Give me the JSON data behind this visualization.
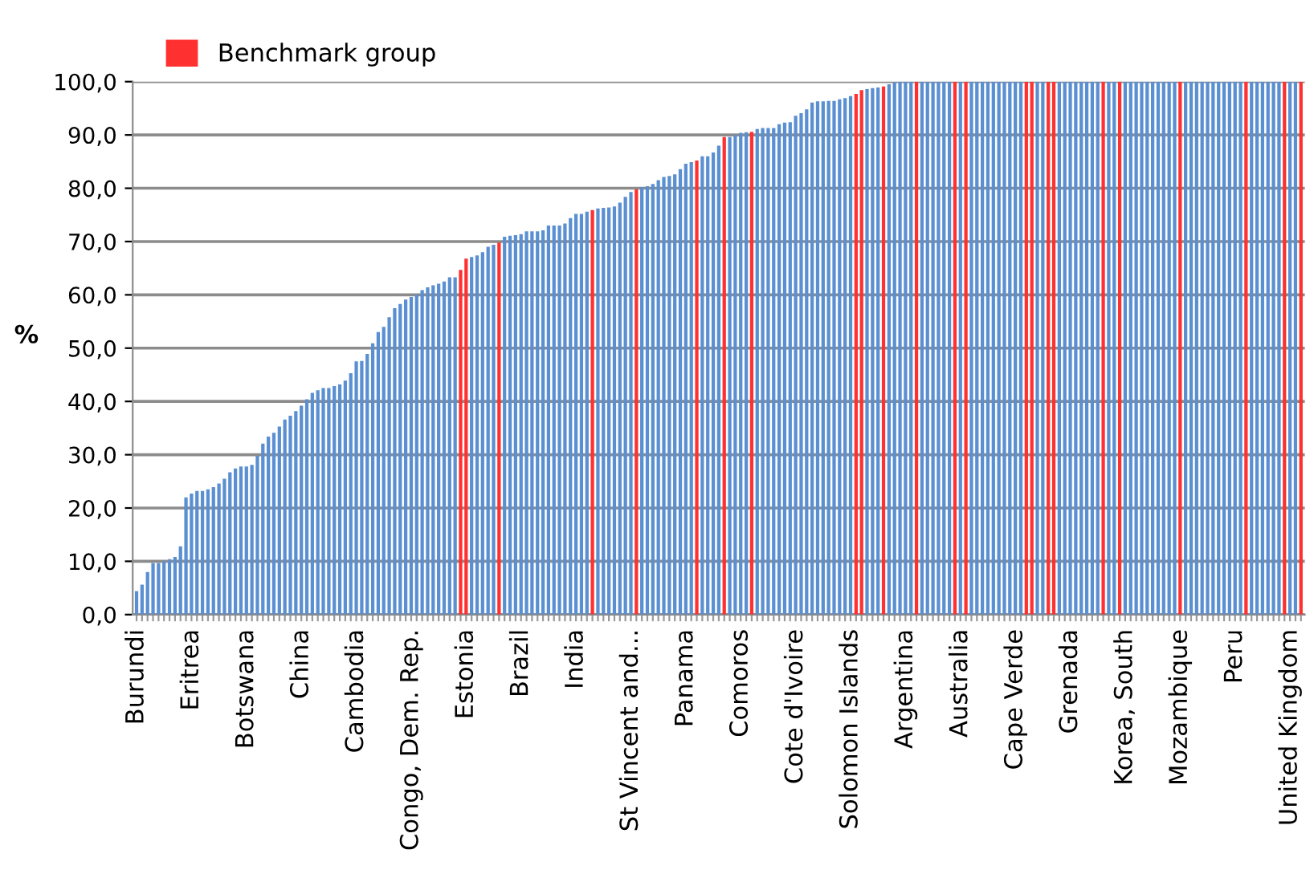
{
  "chart_data": {
    "type": "bar",
    "categories": [
      "Burundi",
      null,
      null,
      null,
      null,
      null,
      null,
      null,
      null,
      null,
      "Eritrea",
      null,
      null,
      null,
      null,
      null,
      null,
      null,
      null,
      null,
      "Botswana",
      null,
      null,
      null,
      null,
      null,
      null,
      null,
      null,
      null,
      "China",
      null,
      null,
      null,
      null,
      null,
      null,
      null,
      null,
      null,
      "Cambodia",
      null,
      null,
      null,
      null,
      null,
      null,
      null,
      null,
      null,
      "Congo, Dem. Rep.",
      null,
      null,
      null,
      null,
      null,
      null,
      null,
      null,
      null,
      "Estonia",
      null,
      null,
      null,
      null,
      null,
      null,
      null,
      null,
      null,
      "Brazil",
      null,
      null,
      null,
      null,
      null,
      null,
      null,
      null,
      null,
      "India",
      null,
      null,
      null,
      null,
      null,
      null,
      null,
      null,
      null,
      "St Vincent and...",
      null,
      null,
      null,
      null,
      null,
      null,
      null,
      null,
      null,
      "Panama",
      null,
      null,
      null,
      null,
      null,
      null,
      null,
      null,
      null,
      "Comoros",
      null,
      null,
      null,
      null,
      null,
      null,
      null,
      null,
      null,
      "Cote d'Ivoire",
      null,
      null,
      null,
      null,
      null,
      null,
      null,
      null,
      null,
      "Solomon Islands",
      null,
      null,
      null,
      null,
      null,
      null,
      null,
      null,
      null,
      "Argentina",
      null,
      null,
      null,
      null,
      null,
      null,
      null,
      null,
      null,
      "Australia",
      null,
      null,
      null,
      null,
      null,
      null,
      null,
      null,
      null,
      "Cape Verde",
      null,
      null,
      null,
      null,
      null,
      null,
      null,
      null,
      null,
      "Grenada",
      null,
      null,
      null,
      null,
      null,
      null,
      null,
      null,
      null,
      "Korea, South",
      null,
      null,
      null,
      null,
      null,
      null,
      null,
      null,
      null,
      "Mozambique",
      null,
      null,
      null,
      null,
      null,
      null,
      null,
      null,
      null,
      "Peru",
      null,
      null,
      null,
      null,
      null,
      null,
      null,
      null,
      null,
      "United Kingdom",
      null,
      null
    ],
    "series": [
      {
        "color": "#5a8fd1",
        "values": [
          4.4,
          5.6,
          8.0,
          9.7,
          9.7,
          10.0,
          10.4,
          10.8,
          12.8,
          22.0,
          22.7,
          23.2,
          23.2,
          23.5,
          23.9,
          24.6,
          25.5,
          26.7,
          27.4,
          27.8,
          27.8,
          28.1,
          29.8,
          32.1,
          33.4,
          34.1,
          35.3,
          36.6,
          37.3,
          38.2,
          39.2,
          40.4,
          41.6,
          42.1,
          42.5,
          42.5,
          42.9,
          43.2,
          43.9,
          45.3,
          47.5,
          47.6,
          48.9,
          50.9,
          53.0,
          54.0,
          55.8,
          57.5,
          58.3,
          59.1,
          59.6,
          60.0,
          60.9,
          61.4,
          61.8,
          62.1,
          62.5,
          63.3,
          63.3,
          null,
          null,
          67.1,
          67.4,
          68.0,
          69.0,
          69.4,
          null,
          70.9,
          71.1,
          71.2,
          71.4,
          71.9,
          71.9,
          71.9,
          72.1,
          73.0,
          73.0,
          73.0,
          73.4,
          74.4,
          75.2,
          75.2,
          75.6,
          null,
          76.2,
          76.3,
          76.4,
          76.6,
          77.3,
          78.4,
          79.3,
          null,
          80.2,
          80.4,
          80.8,
          81.5,
          82.1,
          82.3,
          82.6,
          83.6,
          84.6,
          84.9,
          null,
          86.0,
          86.0,
          86.7,
          88.0,
          null,
          89.6,
          90.0,
          90.4,
          90.5,
          null,
          91.1,
          91.3,
          91.3,
          91.3,
          92.0,
          92.3,
          92.4,
          93.6,
          94.1,
          94.8,
          96.1,
          96.3,
          96.3,
          96.4,
          96.4,
          96.7,
          96.9,
          97.3,
          null,
          null,
          98.6,
          98.8,
          98.9,
          null,
          99.5,
          99.9,
          100,
          100,
          100,
          null,
          100,
          100,
          100,
          100,
          100,
          100,
          null,
          100,
          null,
          100,
          100,
          100,
          100,
          100,
          100,
          100,
          100,
          100,
          100,
          null,
          null,
          100,
          100,
          null,
          null,
          100,
          100,
          100,
          100,
          100,
          100,
          100,
          100,
          null,
          100,
          100,
          null,
          100,
          100,
          100,
          100,
          100,
          100,
          100,
          100,
          100,
          100,
          null,
          100,
          100,
          100,
          100,
          100,
          100,
          100,
          100,
          100,
          100,
          100,
          null,
          100,
          100,
          100,
          100,
          100,
          100,
          null,
          100,
          100,
          null
        ]
      },
      {
        "name": "Benchmark group",
        "color": "#ff3030",
        "values": [
          null,
          null,
          null,
          null,
          null,
          null,
          null,
          null,
          null,
          null,
          null,
          null,
          null,
          null,
          null,
          null,
          null,
          null,
          null,
          null,
          null,
          null,
          null,
          null,
          null,
          null,
          null,
          null,
          null,
          null,
          null,
          null,
          null,
          null,
          null,
          null,
          null,
          null,
          null,
          null,
          null,
          null,
          null,
          null,
          null,
          null,
          null,
          null,
          null,
          null,
          null,
          null,
          null,
          null,
          null,
          null,
          null,
          null,
          null,
          64.7,
          66.8,
          null,
          null,
          null,
          null,
          null,
          69.8,
          null,
          null,
          null,
          null,
          null,
          null,
          null,
          null,
          null,
          null,
          null,
          null,
          null,
          null,
          null,
          null,
          75.9,
          null,
          null,
          null,
          null,
          null,
          null,
          null,
          79.8,
          null,
          null,
          null,
          null,
          null,
          null,
          null,
          null,
          null,
          null,
          85.2,
          null,
          null,
          null,
          null,
          89.6,
          null,
          null,
          null,
          null,
          90.6,
          null,
          null,
          null,
          null,
          null,
          null,
          null,
          null,
          null,
          null,
          null,
          null,
          null,
          null,
          null,
          null,
          null,
          null,
          97.7,
          98.4,
          null,
          null,
          null,
          99.1,
          null,
          null,
          null,
          null,
          null,
          100,
          null,
          null,
          null,
          null,
          null,
          null,
          100,
          null,
          100,
          null,
          null,
          null,
          null,
          null,
          null,
          null,
          null,
          null,
          null,
          100,
          100,
          null,
          null,
          100,
          100,
          null,
          null,
          null,
          null,
          null,
          null,
          null,
          null,
          100,
          null,
          null,
          100,
          null,
          null,
          null,
          null,
          null,
          null,
          null,
          null,
          null,
          null,
          100,
          null,
          null,
          null,
          null,
          null,
          null,
          null,
          null,
          null,
          null,
          null,
          100,
          null,
          null,
          null,
          null,
          null,
          null,
          100,
          null,
          null,
          100
        ]
      }
    ],
    "ylabel": "%",
    "ylim": [
      0,
      100
    ],
    "yticks": [
      {
        "value": 0,
        "label": "0,0"
      },
      {
        "value": 10,
        "label": "10,0"
      },
      {
        "value": 20,
        "label": "20,0"
      },
      {
        "value": 30,
        "label": "30,0"
      },
      {
        "value": 40,
        "label": "40,0"
      },
      {
        "value": 50,
        "label": "50,0"
      },
      {
        "value": 60,
        "label": "60,0"
      },
      {
        "value": 70,
        "label": "70,0"
      },
      {
        "value": 80,
        "label": "80,0"
      },
      {
        "value": 90,
        "label": "90,0"
      },
      {
        "value": 100,
        "label": "100,0"
      }
    ],
    "grid": "y",
    "legend": "top left"
  }
}
